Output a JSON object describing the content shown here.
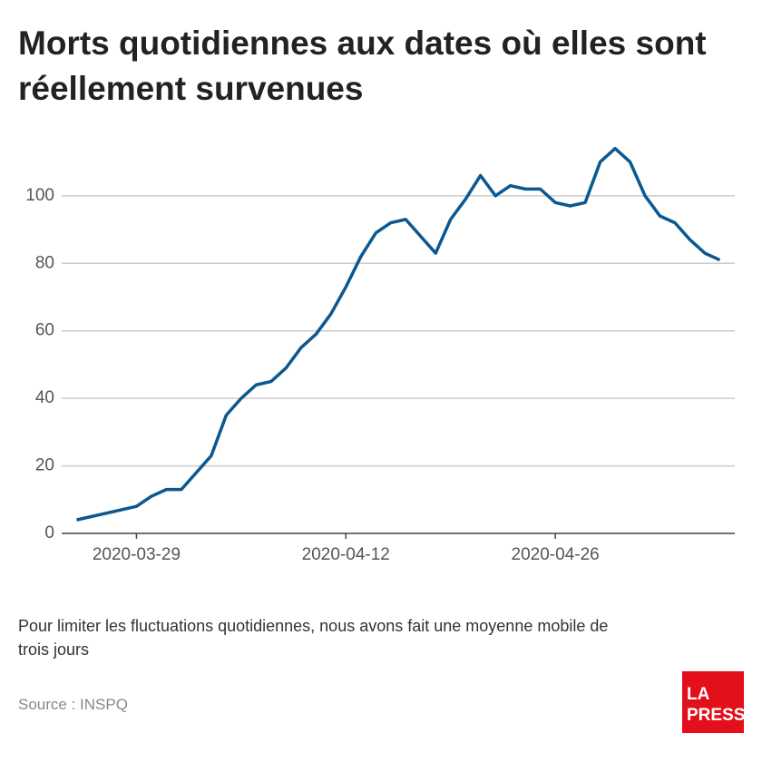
{
  "chart_data": {
    "type": "line",
    "title_lines": [
      "Morts quotidiennes aux dates où elles sont",
      "réellement survenues"
    ],
    "x": [
      "2020-03-25",
      "2020-03-26",
      "2020-03-27",
      "2020-03-28",
      "2020-03-29",
      "2020-03-30",
      "2020-03-31",
      "2020-04-01",
      "2020-04-02",
      "2020-04-03",
      "2020-04-04",
      "2020-04-05",
      "2020-04-06",
      "2020-04-07",
      "2020-04-08",
      "2020-04-09",
      "2020-04-10",
      "2020-04-11",
      "2020-04-12",
      "2020-04-13",
      "2020-04-14",
      "2020-04-15",
      "2020-04-16",
      "2020-04-17",
      "2020-04-18",
      "2020-04-19",
      "2020-04-20",
      "2020-04-21",
      "2020-04-22",
      "2020-04-23",
      "2020-04-24",
      "2020-04-25",
      "2020-04-26",
      "2020-04-27",
      "2020-04-28",
      "2020-04-29",
      "2020-04-30",
      "2020-05-01",
      "2020-05-02",
      "2020-05-03",
      "2020-05-04",
      "2020-05-05",
      "2020-05-06",
      "2020-05-07"
    ],
    "series": [
      {
        "color": "#0b5890",
        "values": [
          4,
          5,
          6,
          7,
          8,
          11,
          13,
          13,
          18,
          23,
          35,
          40,
          44,
          45,
          49,
          55,
          59,
          65,
          73,
          82,
          89,
          92,
          93,
          88,
          83,
          93,
          99,
          106,
          100,
          103,
          102,
          102,
          98,
          97,
          98,
          110,
          114,
          110,
          100,
          94,
          92,
          87,
          83,
          81
        ]
      }
    ],
    "xlim": [
      "2020-03-24",
      "2020-05-08"
    ],
    "xticks": [
      "2020-03-29",
      "2020-04-12",
      "2020-04-26"
    ],
    "ylim": [
      0,
      115
    ],
    "yticks": [
      0,
      20,
      40,
      60,
      80,
      100
    ],
    "grid": true,
    "note_lines": [
      "Pour limiter les fluctuations quotidiennes, nous avons fait une moyenne mobile de",
      "trois jours"
    ],
    "source": "Source : INSPQ",
    "logo": [
      "LA",
      "PRESSE"
    ]
  }
}
